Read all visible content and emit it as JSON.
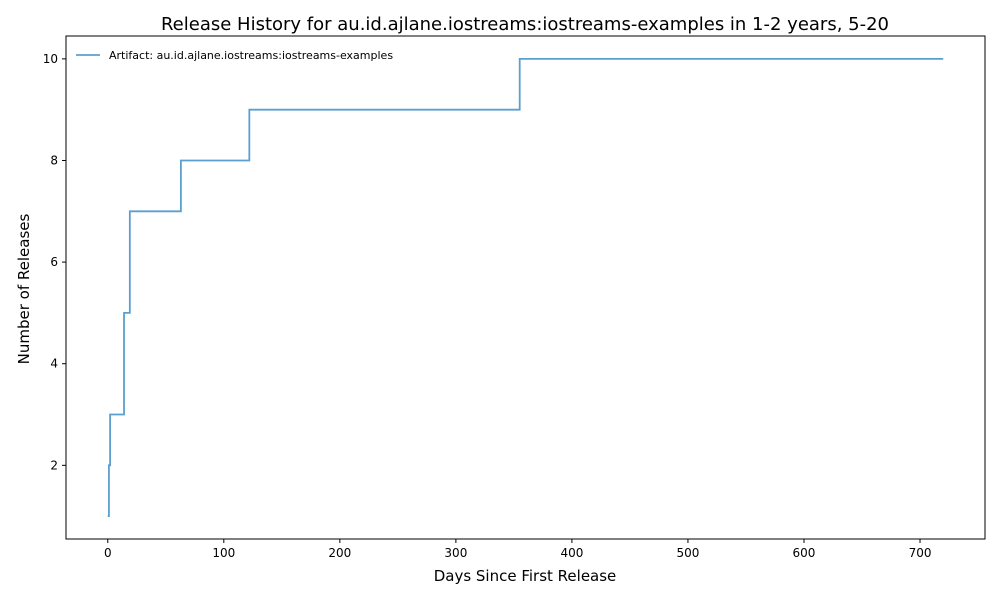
{
  "chart_data": {
    "type": "line",
    "step": "post",
    "title": "Release History for au.id.ajlane.iostreams:iostreams-examples in 1-2 years, 5-20",
    "xlabel": "Days Since First Release",
    "ylabel": "Number of Releases",
    "xlim": [
      -36,
      756
    ],
    "ylim": [
      0.55,
      10.45
    ],
    "xticks": [
      0,
      100,
      200,
      300,
      400,
      500,
      600,
      700
    ],
    "yticks": [
      2,
      4,
      6,
      8,
      10
    ],
    "grid": false,
    "legend_position": "top-left",
    "series": [
      {
        "name": "Artifact: au.id.ajlane.iostreams:iostreams-examples",
        "color": "#5b9fcf",
        "x": [
          0,
          1,
          2,
          14,
          19,
          63,
          122,
          355,
          720
        ],
        "y": [
          1,
          2,
          3,
          5,
          7,
          8,
          9,
          10,
          10
        ]
      }
    ]
  }
}
